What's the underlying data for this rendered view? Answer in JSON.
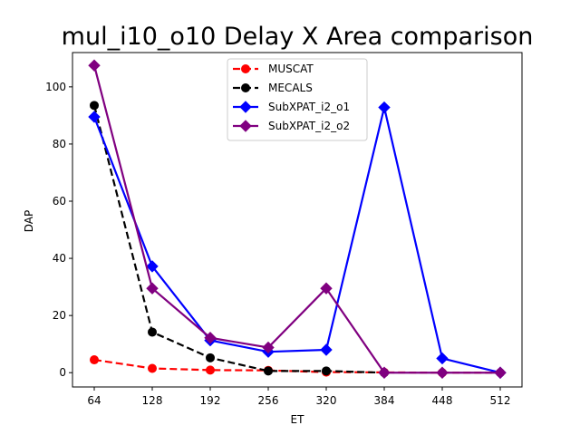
{
  "chart_data": {
    "type": "line",
    "title": "mul_i10_o10 Delay X Area comparison",
    "xlabel": "ET",
    "ylabel": "DAP",
    "x": [
      64,
      128,
      192,
      256,
      320,
      384,
      448,
      512
    ],
    "xlim": [
      40,
      536
    ],
    "ylim": [
      -5,
      112
    ],
    "yticks": [
      0,
      20,
      40,
      60,
      80,
      100
    ],
    "grid": false,
    "legend_position": "top-center",
    "series": [
      {
        "name": "MUSCAT",
        "x": [
          64,
          128,
          192,
          256,
          320,
          384,
          448,
          512
        ],
        "values": [
          4.5,
          1.5,
          0.9,
          0.8,
          0.2,
          0.1,
          0.0,
          0.0
        ],
        "color": "#ff0000",
        "line_style": "dashed",
        "marker": "circle"
      },
      {
        "name": "MECALS",
        "x": [
          64,
          128,
          192,
          256,
          320,
          384
        ],
        "values": [
          93.5,
          14.2,
          5.2,
          0.6,
          0.6,
          0.0
        ],
        "color": "#000000",
        "line_style": "dashed",
        "marker": "circle"
      },
      {
        "name": "SubXPAT_i2_o1",
        "x": [
          64,
          128,
          192,
          256,
          320,
          384,
          448,
          512
        ],
        "values": [
          89.5,
          37.2,
          11.3,
          7.3,
          8.0,
          92.8,
          5.0,
          0.0
        ],
        "color": "#0000ff",
        "line_style": "solid",
        "marker": "diamond"
      },
      {
        "name": "SubXPAT_i2_o2",
        "x": [
          64,
          128,
          192,
          256,
          320,
          384,
          448,
          512
        ],
        "values": [
          107.5,
          29.5,
          12.2,
          8.8,
          29.5,
          0.0,
          0.0,
          0.0
        ],
        "color": "#800080",
        "line_style": "solid",
        "marker": "diamond"
      }
    ]
  }
}
